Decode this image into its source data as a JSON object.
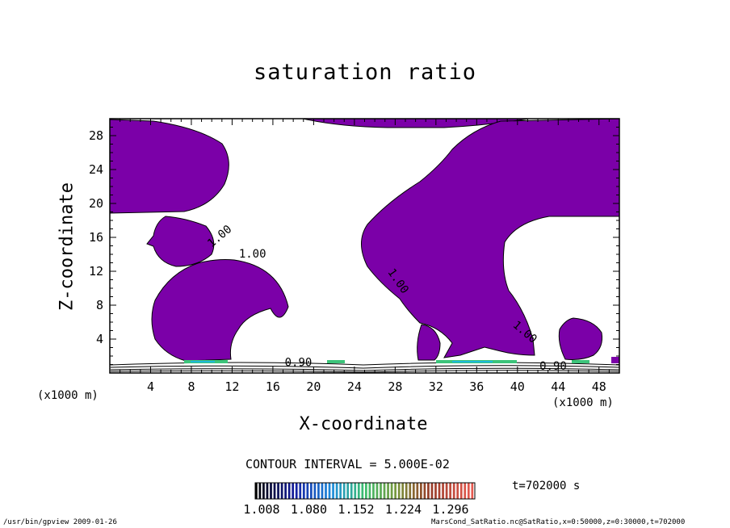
{
  "chart_data": {
    "type": "heatmap",
    "title": "saturation ratio",
    "xlabel": "X-coordinate",
    "ylabel": "Z-coordinate",
    "x_unit_label": "(x1000 m)",
    "xlim": [
      0,
      50
    ],
    "ylim": [
      0,
      30
    ],
    "x_ticks": [
      "4",
      "8",
      "12",
      "16",
      "20",
      "24",
      "28",
      "32",
      "36",
      "40",
      "44",
      "48"
    ],
    "y_ticks": [
      "4",
      "8",
      "12",
      "16",
      "20",
      "24",
      "28"
    ],
    "contour_labels": [
      "1.00",
      "1.00",
      "1.00",
      "1.00",
      "0.90",
      "0.90"
    ],
    "contour_interval": "CONTOUR INTERVAL = 5.000E-02",
    "time": "t=702000 s",
    "colorbar": {
      "ticks": [
        "1.008",
        "1.080",
        "1.152",
        "1.224",
        "1.296"
      ],
      "min": 1.008,
      "max": 1.296
    },
    "colors": {
      "supersaturated_fill": "#7b00a8",
      "contour_line": "#000000",
      "background": "#ffffff"
    }
  },
  "footer": {
    "left": "/usr/bin/gpview  2009-01-26",
    "right": "MarsCond_SatRatio.nc@SatRatio,x=0:50000,z=0:30000,t=702000"
  }
}
